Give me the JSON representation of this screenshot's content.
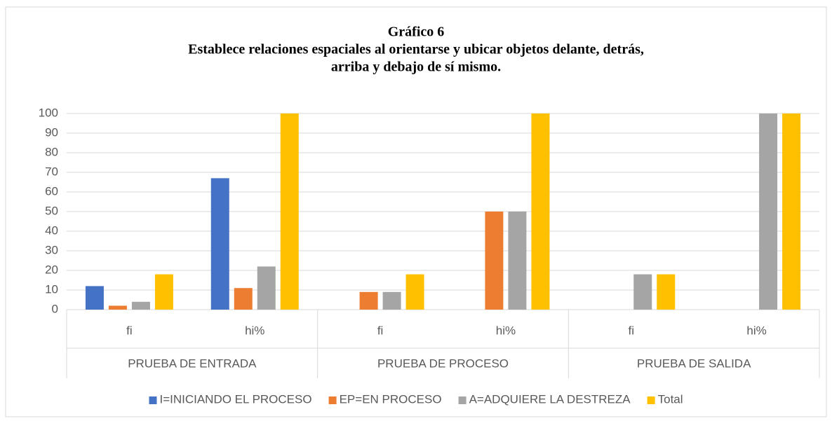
{
  "chart_data": {
    "type": "bar",
    "title": "Gráfico 6",
    "subtitle": [
      "Establece relaciones espaciales al orientarse y ubicar objetos delante, detrás,",
      "arriba y debajo de sí mismo."
    ],
    "categories": [
      "fi",
      "hi%",
      "fi",
      "hi%",
      "fi",
      "hi%"
    ],
    "groups": [
      "PRUEBA DE ENTRADA",
      "PRUEBA DE PROCESO",
      "PRUEBA DE SALIDA"
    ],
    "series": [
      {
        "name": "I=INICIANDO EL PROCESO",
        "color": "#4472c4",
        "values": [
          12,
          67,
          0,
          0,
          0,
          0
        ]
      },
      {
        "name": "EP=EN PROCESO",
        "color": "#ed7d31",
        "values": [
          2,
          11,
          9,
          50,
          0,
          0
        ]
      },
      {
        "name": "A=ADQUIERE LA DESTREZA",
        "color": "#a5a5a5",
        "values": [
          4,
          22,
          9,
          50,
          18,
          100
        ]
      },
      {
        "name": "Total",
        "color": "#ffc000",
        "values": [
          18,
          100,
          18,
          100,
          18,
          100
        ]
      }
    ],
    "ylim": [
      0,
      100
    ],
    "yticks": [
      0,
      10,
      20,
      30,
      40,
      50,
      60,
      70,
      80,
      90,
      100
    ],
    "grid": true,
    "legend": "bottom"
  }
}
